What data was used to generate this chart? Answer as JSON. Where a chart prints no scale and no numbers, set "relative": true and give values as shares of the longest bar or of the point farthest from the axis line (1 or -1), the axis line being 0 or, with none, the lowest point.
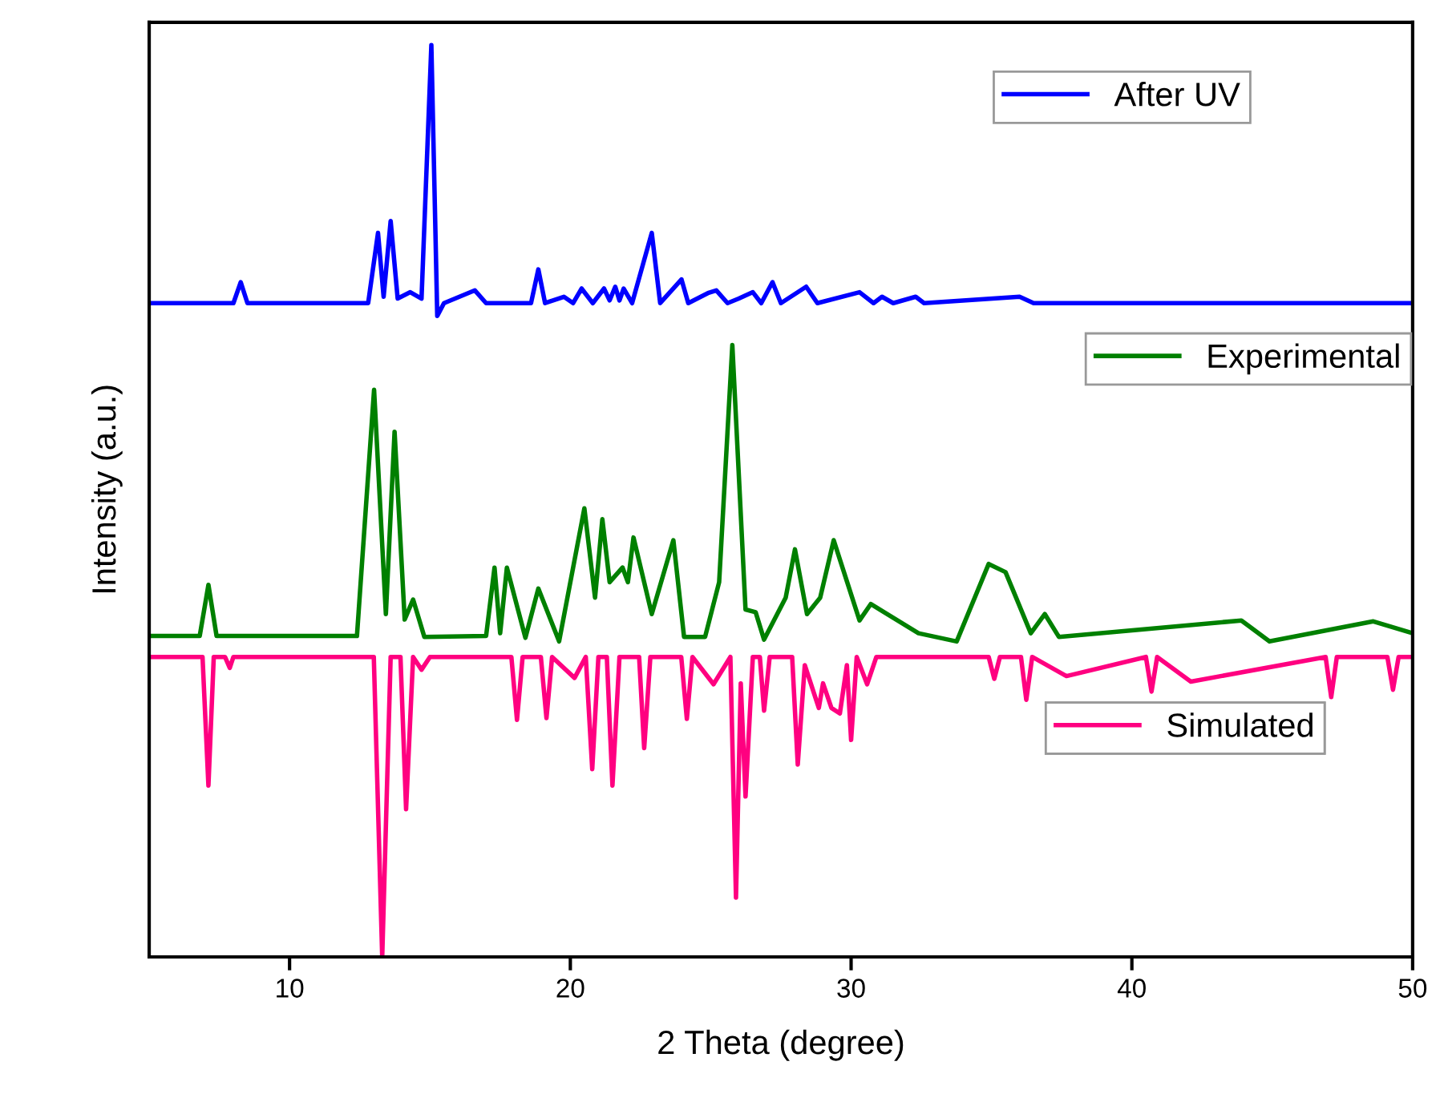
{
  "chart_data": {
    "type": "line",
    "relative": true,
    "xlabel": "2 Theta (degree)",
    "ylabel": "Intensity (a.u.)",
    "xlim": [
      5,
      50
    ],
    "xticks": [
      10,
      20,
      30,
      40,
      50
    ],
    "legend": "right",
    "grid": false,
    "series": [
      {
        "name": "After UV",
        "color": "#0000ff",
        "x": [
          5,
          7.5,
          8.0,
          8.26,
          8.5,
          12.8,
          13.15,
          13.35,
          13.6,
          13.85,
          14.3,
          14.7,
          15.05,
          15.26,
          15.5,
          16.6,
          17,
          18.6,
          18.86,
          19.1,
          19.77,
          20.1,
          20.4,
          20.8,
          21.2,
          21.4,
          21.6,
          21.75,
          21.9,
          22.2,
          22.9,
          23.2,
          23.96,
          24.2,
          24.9,
          25.2,
          25.6,
          26.0,
          26.5,
          26.8,
          27.2,
          27.5,
          28.4,
          28.8,
          30.3,
          30.8,
          31.1,
          31.5,
          32.3,
          32.6,
          36,
          36.5,
          50
        ],
        "values": [
          0.717,
          0.717,
          0.717,
          0.74,
          0.717,
          0.717,
          0.794,
          0.724,
          0.807,
          0.722,
          0.729,
          0.722,
          1.0,
          0.703,
          0.717,
          0.731,
          0.717,
          0.717,
          0.754,
          0.717,
          0.724,
          0.717,
          0.733,
          0.717,
          0.733,
          0.72,
          0.735,
          0.72,
          0.733,
          0.717,
          0.794,
          0.717,
          0.743,
          0.717,
          0.728,
          0.731,
          0.717,
          0.722,
          0.729,
          0.717,
          0.74,
          0.717,
          0.735,
          0.717,
          0.729,
          0.717,
          0.724,
          0.717,
          0.724,
          0.717,
          0.724,
          0.717,
          0.717
        ]
      },
      {
        "name": "Experimental",
        "color": "#008000",
        "x": [
          5,
          6.8,
          7.11,
          7.4,
          12.4,
          13.01,
          13.43,
          13.74,
          14.1,
          14.4,
          14.8,
          17.0,
          17.3,
          17.5,
          17.74,
          18.4,
          18.86,
          19.6,
          20.5,
          20.88,
          21.14,
          21.4,
          21.86,
          22.05,
          22.25,
          22.9,
          23.67,
          24.05,
          24.8,
          25.3,
          25.77,
          26.24,
          26.6,
          26.9,
          27.67,
          28.0,
          28.43,
          28.9,
          29.38,
          29.86,
          30.3,
          30.7,
          32.4,
          33.76,
          34.9,
          35.5,
          36.4,
          36.9,
          37.4,
          43.9,
          44.9,
          48.6,
          50
        ],
        "values": [
          0.352,
          0.352,
          0.408,
          0.352,
          0.352,
          0.622,
          0.376,
          0.576,
          0.37,
          0.392,
          0.351,
          0.352,
          0.427,
          0.355,
          0.427,
          0.35,
          0.404,
          0.346,
          0.492,
          0.394,
          0.48,
          0.411,
          0.427,
          0.411,
          0.46,
          0.376,
          0.457,
          0.351,
          0.351,
          0.411,
          0.671,
          0.381,
          0.378,
          0.348,
          0.394,
          0.447,
          0.376,
          0.394,
          0.457,
          0.411,
          0.369,
          0.387,
          0.355,
          0.346,
          0.431,
          0.422,
          0.355,
          0.376,
          0.351,
          0.369,
          0.346,
          0.368,
          0.355
        ]
      },
      {
        "name": "Simulated",
        "color": "#ff0080",
        "x": [
          5,
          6.9,
          7.11,
          7.3,
          7.7,
          7.87,
          8.0,
          13.0,
          13.3,
          13.6,
          13.95,
          14.15,
          14.4,
          14.7,
          15.0,
          17.9,
          18.1,
          18.3,
          18.95,
          19.15,
          19.35,
          20.15,
          20.55,
          20.78,
          21.0,
          21.3,
          21.5,
          21.75,
          22.45,
          22.63,
          22.85,
          23.95,
          24.15,
          24.35,
          25.1,
          25.7,
          25.9,
          26.07,
          26.24,
          26.5,
          26.75,
          26.9,
          27.1,
          27.9,
          28.1,
          28.35,
          28.85,
          29.0,
          29.3,
          29.6,
          29.85,
          30.0,
          30.2,
          30.57,
          30.9,
          34.9,
          35.1,
          35.3,
          36.05,
          36.24,
          36.45,
          37.67,
          40.5,
          40.7,
          40.9,
          42.1,
          46.9,
          47.1,
          47.3,
          49.1,
          49.3,
          49.5,
          50
        ],
        "values": [
          0.329,
          0.329,
          0.188,
          0.329,
          0.329,
          0.317,
          0.329,
          0.329,
          0.0,
          0.329,
          0.329,
          0.162,
          0.329,
          0.315,
          0.329,
          0.329,
          0.26,
          0.329,
          0.329,
          0.262,
          0.329,
          0.306,
          0.329,
          0.206,
          0.329,
          0.329,
          0.188,
          0.329,
          0.329,
          0.229,
          0.329,
          0.329,
          0.261,
          0.329,
          0.299,
          0.329,
          0.065,
          0.3,
          0.176,
          0.329,
          0.329,
          0.27,
          0.329,
          0.329,
          0.211,
          0.32,
          0.273,
          0.3,
          0.273,
          0.267,
          0.32,
          0.238,
          0.329,
          0.299,
          0.329,
          0.329,
          0.305,
          0.329,
          0.329,
          0.282,
          0.329,
          0.308,
          0.329,
          0.291,
          0.329,
          0.302,
          0.329,
          0.285,
          0.329,
          0.329,
          0.293,
          0.329,
          0.329
        ]
      }
    ]
  }
}
